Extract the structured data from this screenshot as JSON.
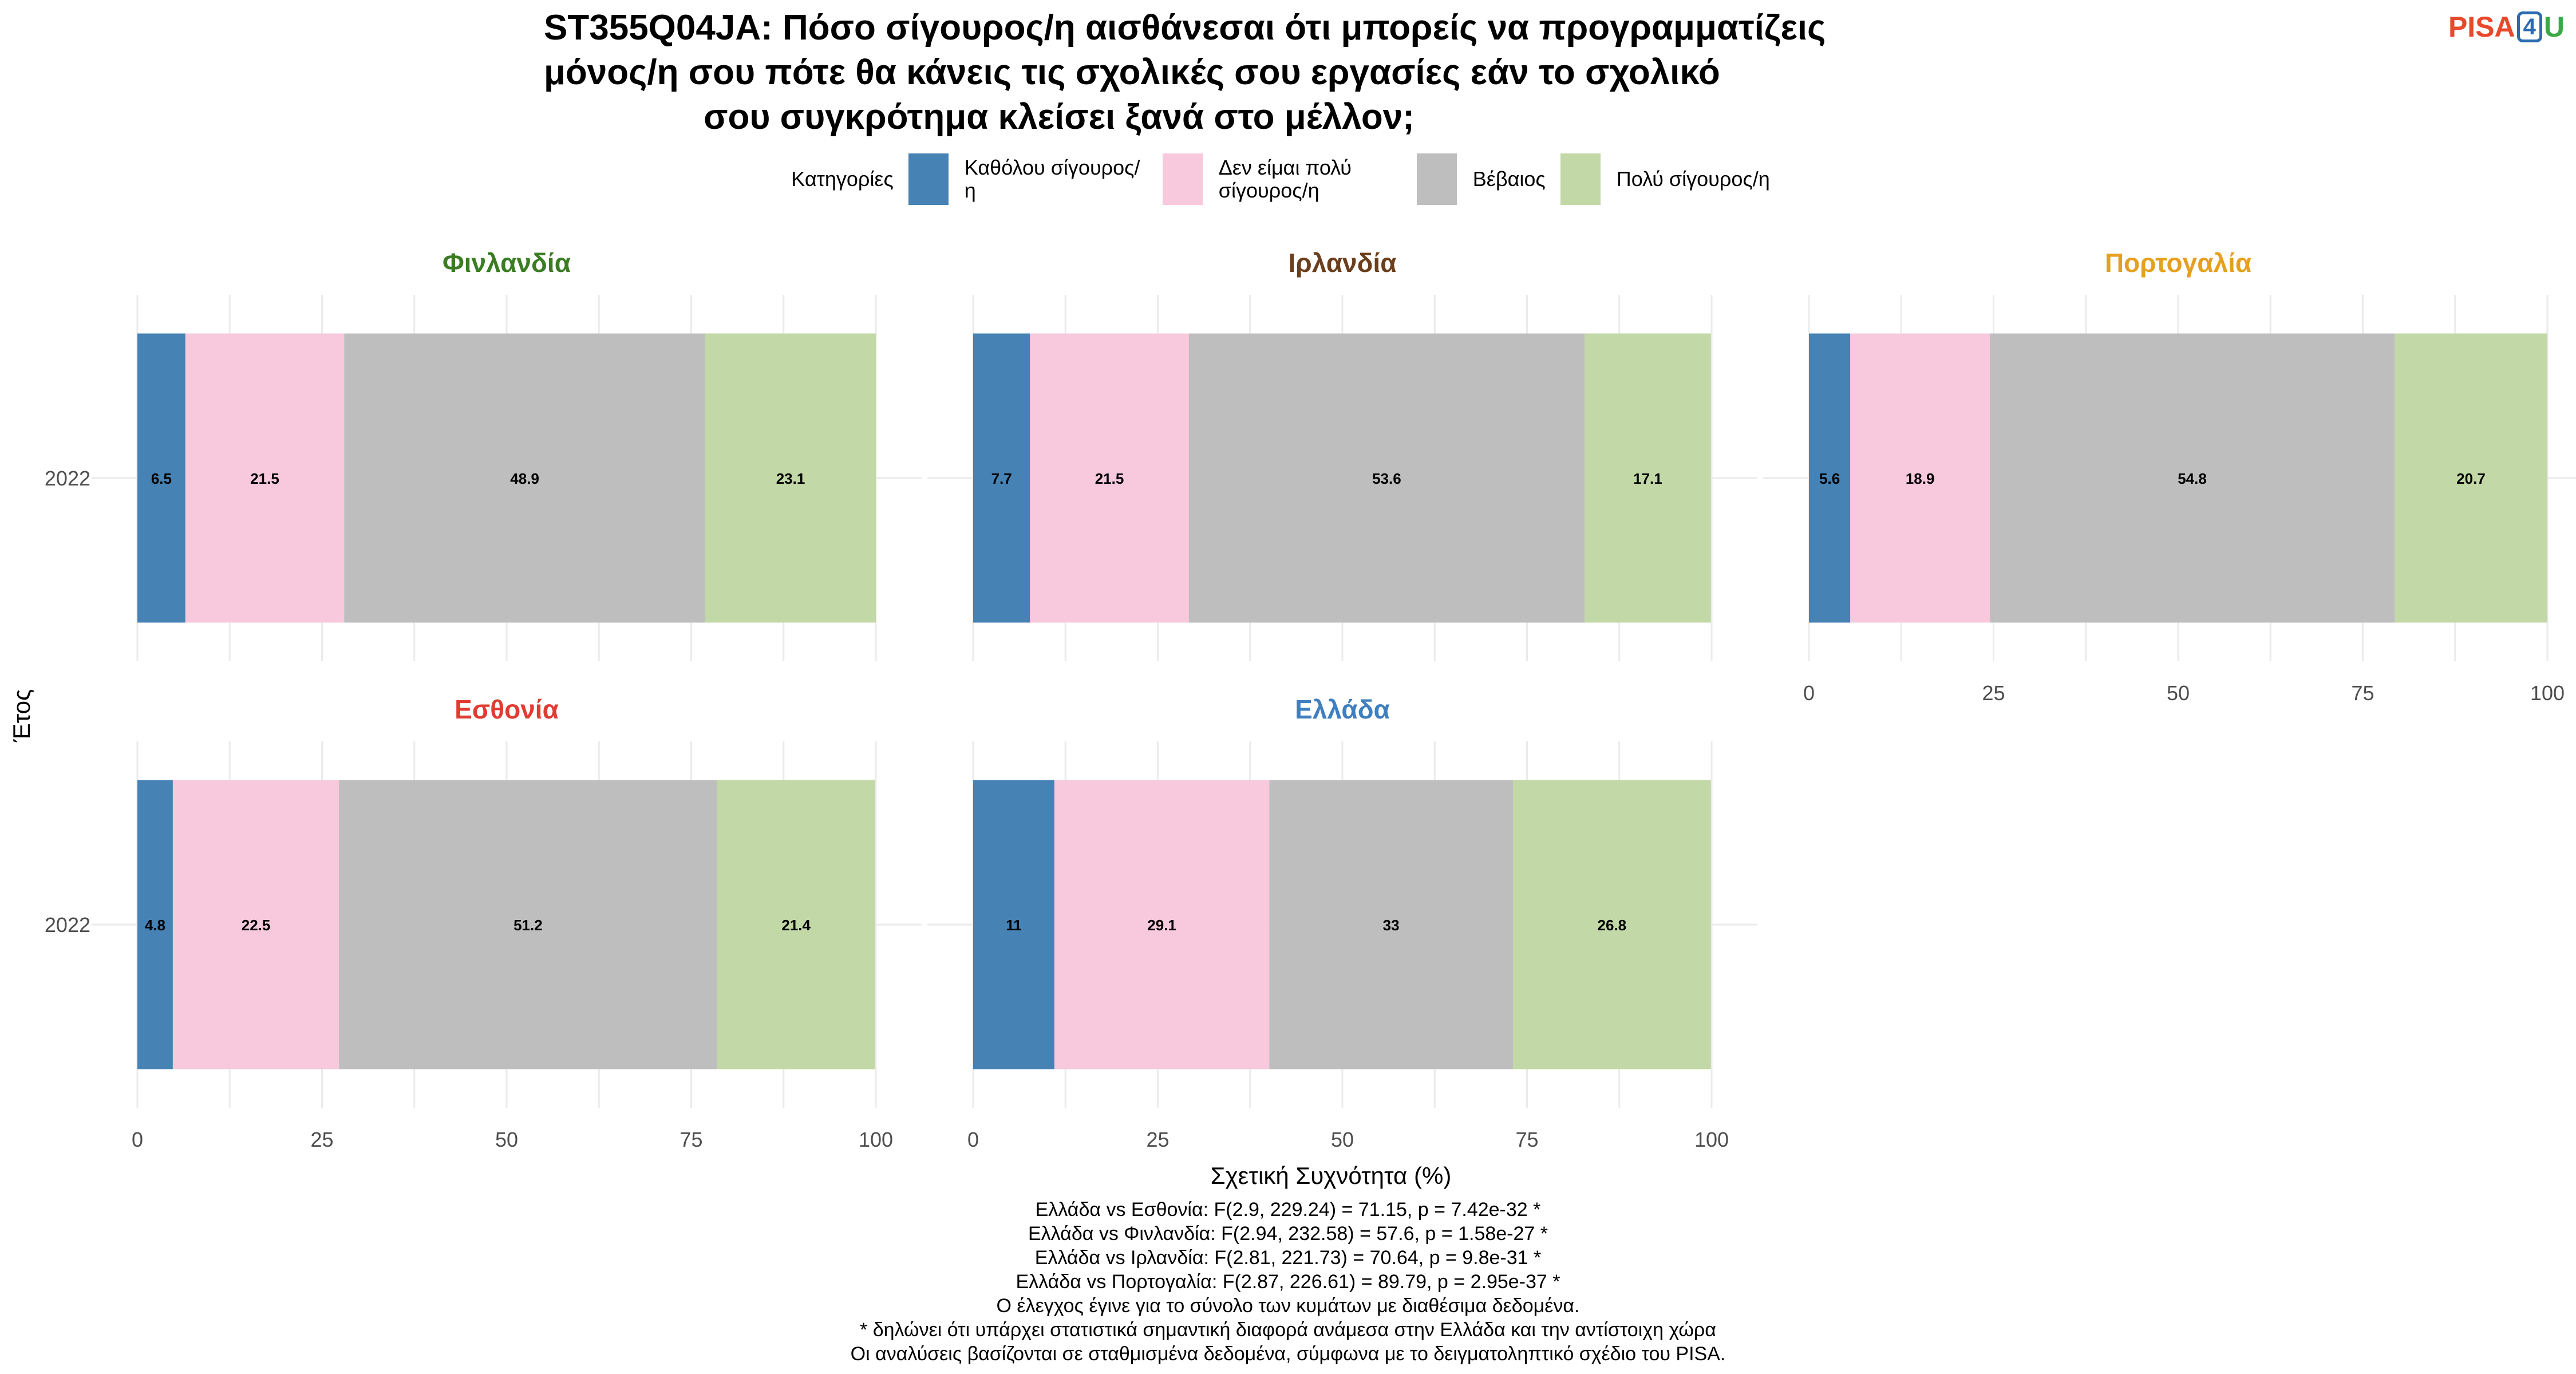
{
  "title_lines": [
    "ST355Q04JA: Πόσο σίγουρος/η αισθάνεσαι ότι μπορείς να προγραμματίζεις",
    "μόνος/η σου πότε θα κάνεις τις σχολικές σου εργασίες εάν το σχολικό",
    "σου συγκρότημα κλείσει ξανά στο μέλλον;"
  ],
  "logo": {
    "part1": "PISA",
    "part2": "4",
    "part3": "U"
  },
  "legend": {
    "title": "Κατηγορίες",
    "items": [
      {
        "label": "Καθόλου σίγουρος/η",
        "color": "#4682b4"
      },
      {
        "label": "Δεν είμαι πολύ σίγουρος/η",
        "color": "#f8c8dc"
      },
      {
        "label": "Βέβαιος",
        "color": "#bebebe"
      },
      {
        "label": "Πολύ σίγουρος/η",
        "color": "#c2d8a6"
      }
    ]
  },
  "chart_data": {
    "type": "bar",
    "orientation": "horizontal",
    "stacked": true,
    "xlabel": "Σχετική Συχνότητα (%)",
    "ylabel": "Έτος",
    "xlim": [
      0,
      100
    ],
    "xticks": [
      0,
      25,
      50,
      75,
      100
    ],
    "categories": [
      "Καθόλου σίγουρος/η",
      "Δεν είμαι πολύ σίγουρος/η",
      "Βέβαιος",
      "Πολύ σίγουρος/η"
    ],
    "facets": [
      {
        "name": "Φινλανδία",
        "title_color": "#3a7d22",
        "year": "2022",
        "values": [
          6.5,
          21.5,
          48.9,
          23.1
        ]
      },
      {
        "name": "Ιρλανδία",
        "title_color": "#6b3f1d",
        "year": "2022",
        "values": [
          7.7,
          21.5,
          53.6,
          17.1
        ]
      },
      {
        "name": "Πορτογαλία",
        "title_color": "#e6a020",
        "year": "2022",
        "values": [
          5.6,
          18.9,
          54.8,
          20.7
        ]
      },
      {
        "name": "Εσθονία",
        "title_color": "#e03c31",
        "year": "2022",
        "values": [
          4.8,
          22.5,
          51.2,
          21.4
        ]
      },
      {
        "name": "Ελλάδα",
        "title_color": "#3f7fbf",
        "year": "2022",
        "values": [
          11,
          29.1,
          33,
          26.8
        ]
      }
    ],
    "grid": true
  },
  "notes": [
    "Ελλάδα vs Εσθονία: F(2.9, 229.24) = 71.15, p = 7.42e-32 *",
    "Ελλάδα vs Φινλανδία: F(2.94, 232.58) = 57.6, p = 1.58e-27 *",
    "Ελλάδα vs Ιρλανδία: F(2.81, 221.73) = 70.64, p = 9.8e-31 *",
    "Ελλάδα vs Πορτογαλία: F(2.87, 226.61) = 89.79, p = 2.95e-37 *",
    "Ο έλεγχος έγινε για το σύνολο των κυμάτων με διαθέσιμα δεδομένα.",
    "* δηλώνει ότι υπάρχει στατιστικά σημαντική διαφορά ανάμεσα στην Ελλάδα και την αντίστοιχη χώρα",
    "Οι αναλύσεις βασίζονται σε σταθμισμένα δεδομένα, σύμφωνα με το δειγματοληπτικό σχέδιο του PISA."
  ]
}
